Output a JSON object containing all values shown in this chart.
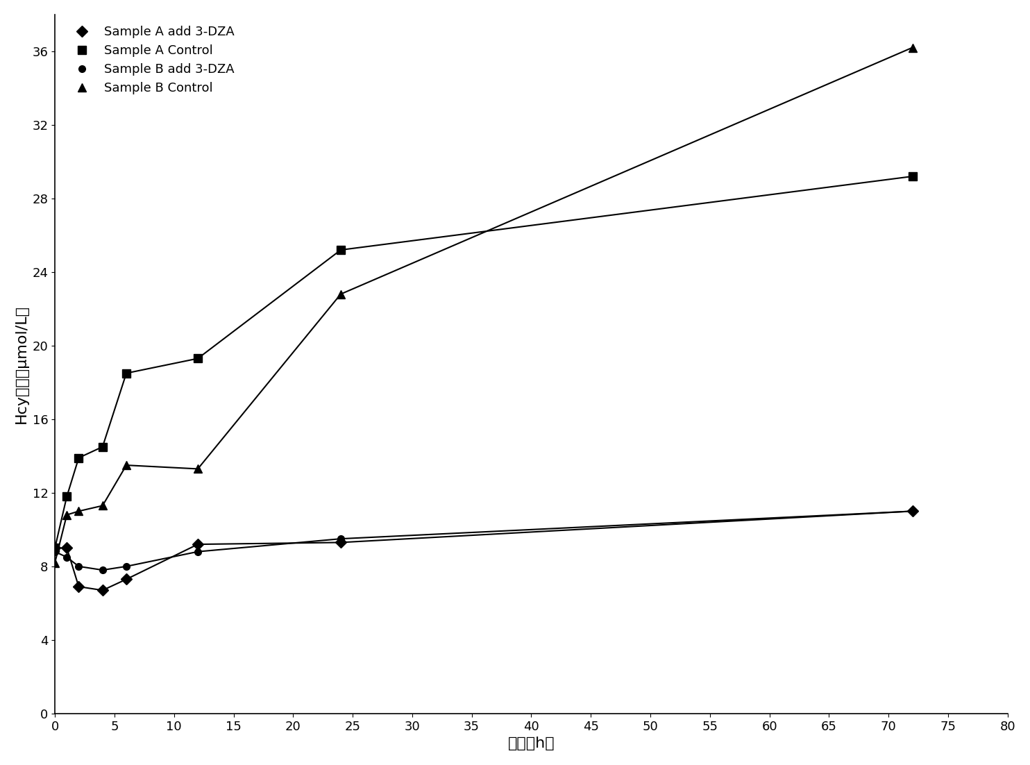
{
  "series": [
    {
      "label": "Sample A add 3-DZA",
      "x": [
        0,
        1,
        2,
        4,
        6,
        12,
        24,
        72
      ],
      "y": [
        9.0,
        9.0,
        6.9,
        6.7,
        7.3,
        9.2,
        9.3,
        11.0
      ],
      "marker": "D",
      "color": "#000000",
      "markersize": 8,
      "linewidth": 1.5
    },
    {
      "label": "Sample A Control",
      "x": [
        0,
        1,
        2,
        4,
        6,
        12,
        24,
        72
      ],
      "y": [
        9.0,
        11.8,
        13.9,
        14.5,
        18.5,
        19.3,
        25.2,
        29.2
      ],
      "marker": "s",
      "color": "#000000",
      "markersize": 8,
      "linewidth": 1.5
    },
    {
      "label": "Sample B add 3-DZA",
      "x": [
        0,
        1,
        2,
        4,
        6,
        12,
        24,
        72
      ],
      "y": [
        8.8,
        8.5,
        8.0,
        7.8,
        8.0,
        8.8,
        9.5,
        11.0
      ],
      "marker": "o",
      "color": "#000000",
      "markersize": 7,
      "linewidth": 1.5
    },
    {
      "label": "Sample B Control",
      "x": [
        0,
        1,
        2,
        4,
        6,
        12,
        24,
        72
      ],
      "y": [
        8.2,
        10.8,
        11.0,
        11.3,
        13.5,
        13.3,
        22.8,
        36.2
      ],
      "marker": "^",
      "color": "#000000",
      "markersize": 8,
      "linewidth": 1.5
    }
  ],
  "xlabel": "时间（h）",
  "ylabel": "Hcy含量（μmol/L）",
  "xlim": [
    0,
    80
  ],
  "ylim": [
    0,
    38
  ],
  "xticks": [
    0,
    5,
    10,
    15,
    20,
    25,
    30,
    35,
    40,
    45,
    50,
    55,
    60,
    65,
    70,
    75,
    80
  ],
  "yticks": [
    0,
    4,
    8,
    12,
    16,
    20,
    24,
    28,
    32,
    36
  ],
  "background_color": "#ffffff",
  "font_size_label": 16,
  "font_size_tick": 13,
  "legend_fontsize": 13
}
